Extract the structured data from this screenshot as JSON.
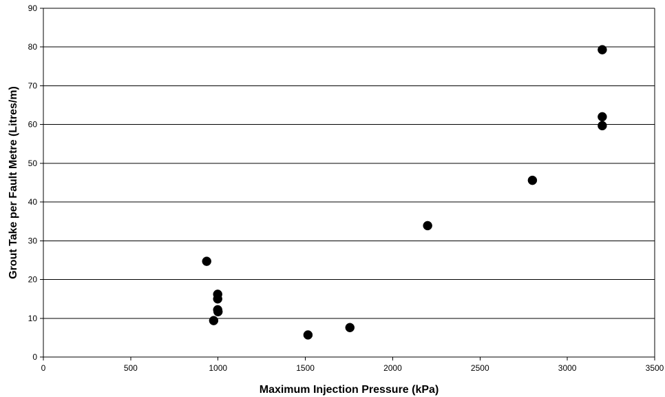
{
  "chart_data": {
    "type": "scatter",
    "title": "",
    "xlabel": "Maximum Injection Pressure (kPa)",
    "ylabel": "Grout Take per Fault Metre (Litres/m)",
    "xlim": [
      0,
      3500
    ],
    "ylim": [
      0,
      90
    ],
    "x_ticks": [
      0,
      500,
      1000,
      1500,
      2000,
      2500,
      3000,
      3500
    ],
    "y_ticks": [
      0,
      10,
      20,
      30,
      40,
      50,
      60,
      70,
      80,
      90
    ],
    "x_tick_labels": [
      "0",
      "500",
      "1000",
      "1500",
      "2000",
      "2500",
      "3000",
      "3500"
    ],
    "y_tick_labels": [
      "0",
      "10",
      "20",
      "30",
      "40",
      "50",
      "60",
      "70",
      "80",
      "90"
    ],
    "grid": "horizontal",
    "legend": "none",
    "marker_color": "#000000",
    "points": [
      {
        "x": 935,
        "y": 24.7
      },
      {
        "x": 975,
        "y": 9.4
      },
      {
        "x": 998,
        "y": 16.2
      },
      {
        "x": 998,
        "y": 15.0
      },
      {
        "x": 998,
        "y": 12.2
      },
      {
        "x": 1000,
        "y": 11.7
      },
      {
        "x": 1515,
        "y": 5.7
      },
      {
        "x": 1755,
        "y": 7.6
      },
      {
        "x": 2200,
        "y": 33.9
      },
      {
        "x": 2800,
        "y": 45.6
      },
      {
        "x": 3200,
        "y": 79.3
      },
      {
        "x": 3200,
        "y": 62.0
      },
      {
        "x": 3200,
        "y": 59.7
      }
    ]
  }
}
